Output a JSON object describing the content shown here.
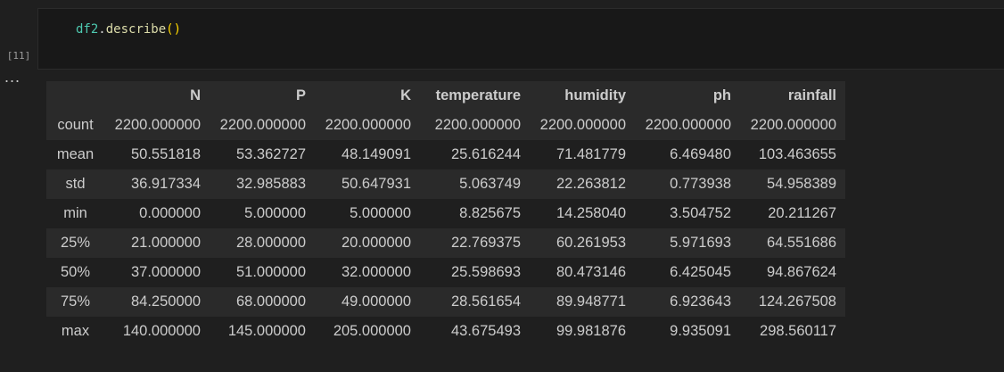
{
  "cell": {
    "execution_count": "[11]",
    "code": {
      "variable": "df2",
      "dot": ".",
      "method": "describe",
      "parens": "()"
    }
  },
  "output": {
    "more_icon_text": "...",
    "table": {
      "columns": [
        "",
        "N",
        "P",
        "K",
        "temperature",
        "humidity",
        "ph",
        "rainfall"
      ],
      "rows": [
        {
          "index": "count",
          "values": [
            "2200.000000",
            "2200.000000",
            "2200.000000",
            "2200.000000",
            "2200.000000",
            "2200.000000",
            "2200.000000"
          ]
        },
        {
          "index": "mean",
          "values": [
            "50.551818",
            "53.362727",
            "48.149091",
            "25.616244",
            "71.481779",
            "6.469480",
            "103.463655"
          ]
        },
        {
          "index": "std",
          "values": [
            "36.917334",
            "32.985883",
            "50.647931",
            "5.063749",
            "22.263812",
            "0.773938",
            "54.958389"
          ]
        },
        {
          "index": "min",
          "values": [
            "0.000000",
            "5.000000",
            "5.000000",
            "8.825675",
            "14.258040",
            "3.504752",
            "20.211267"
          ]
        },
        {
          "index": "25%",
          "values": [
            "21.000000",
            "28.000000",
            "20.000000",
            "22.769375",
            "60.261953",
            "5.971693",
            "64.551686"
          ]
        },
        {
          "index": "50%",
          "values": [
            "37.000000",
            "51.000000",
            "32.000000",
            "25.598693",
            "80.473146",
            "6.425045",
            "94.867624"
          ]
        },
        {
          "index": "75%",
          "values": [
            "84.250000",
            "68.000000",
            "49.000000",
            "28.561654",
            "89.948771",
            "6.923643",
            "124.267508"
          ]
        },
        {
          "index": "max",
          "values": [
            "140.000000",
            "145.000000",
            "205.000000",
            "43.675493",
            "99.981876",
            "9.935091",
            "298.560117"
          ]
        }
      ]
    }
  }
}
